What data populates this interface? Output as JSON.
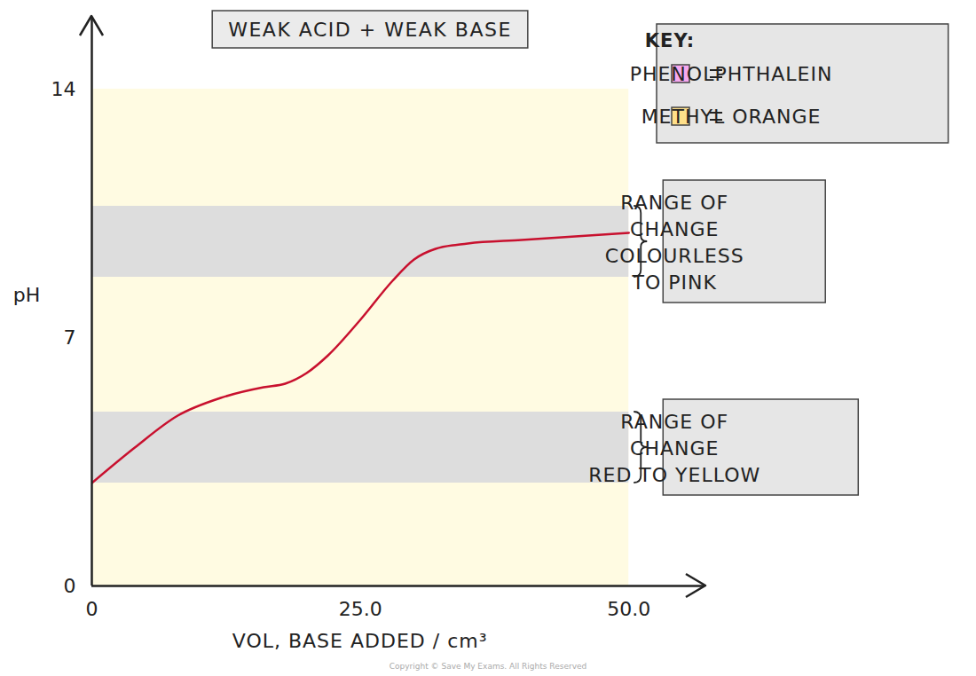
{
  "chart_data": {
    "type": "line",
    "title": "WEAK ACID + WEAK BASE",
    "x_label": "VOL, BASE ADDED / cm³",
    "y_label": "pH",
    "xlim": [
      0,
      57
    ],
    "ylim": [
      0,
      16
    ],
    "xticks": [
      0,
      {
        "value": 25,
        "label": "25.0"
      },
      {
        "value": 50,
        "label": "50.0"
      }
    ],
    "yticks": [
      0,
      7,
      14
    ],
    "grid": false,
    "x": [
      0,
      4,
      8,
      12,
      16,
      18,
      20,
      22,
      25,
      28,
      30,
      32,
      35,
      40,
      45,
      50
    ],
    "values": [
      2.9,
      3.9,
      4.8,
      5.3,
      5.6,
      5.7,
      6.0,
      6.5,
      7.5,
      8.6,
      9.2,
      9.5,
      9.65,
      9.75,
      9.85,
      9.95
    ],
    "color": "#c8102e",
    "legend": "upper right",
    "legend_title": "KEY:",
    "indicators": [
      {
        "name": "PHENOLPHTHALEIN",
        "color": "#f7a8ef",
        "range": [
          8.7,
          10.7
        ],
        "annotation": [
          "RANGE OF",
          "CHANGE",
          "COLOURLESS",
          "TO PINK"
        ]
      },
      {
        "name": "METHYL ORANGE",
        "color": "#ffe08a",
        "range": [
          2.9,
          4.9
        ],
        "annotation": [
          "RANGE OF",
          "CHANGE",
          "RED TO YELLOW"
        ]
      }
    ],
    "credit": "Copyright © Save My Exams. All Rights Reserved"
  }
}
